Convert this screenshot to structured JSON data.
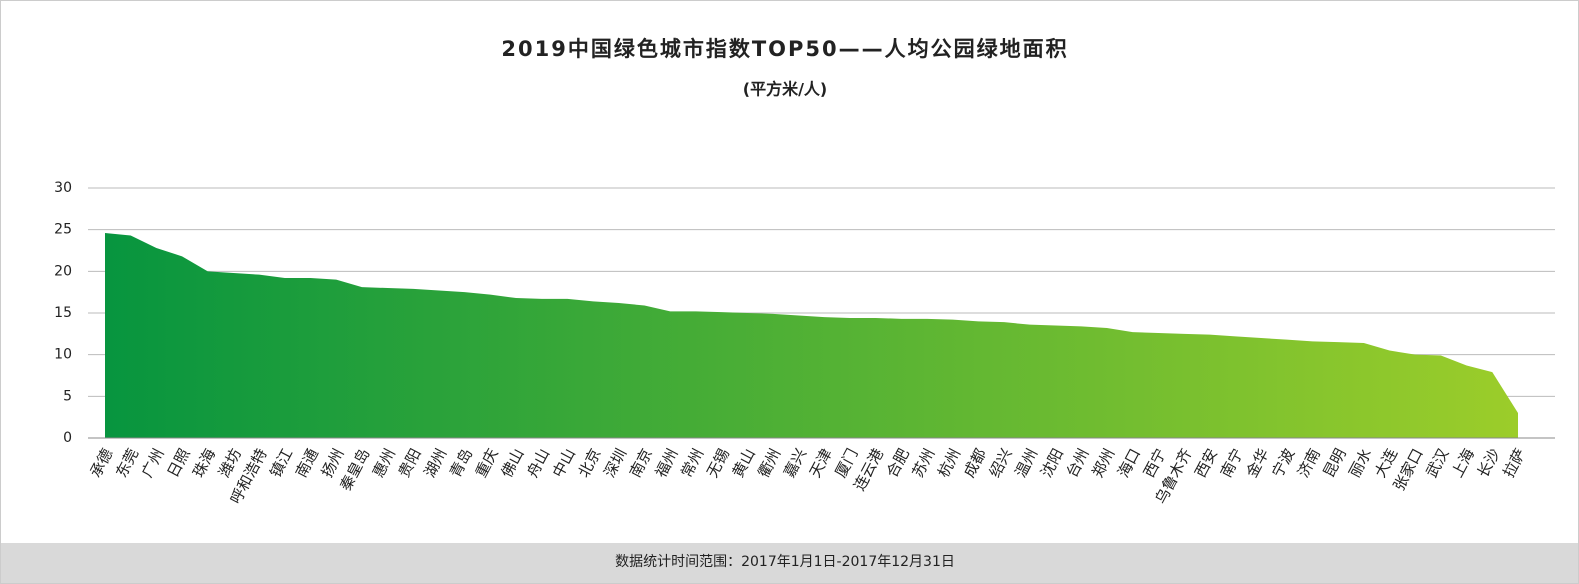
{
  "chart_data": {
    "type": "area",
    "title": "2019中国绿色城市指数TOP50——人均公园绿地面积",
    "subtitle": "(平方米/人)",
    "footer": "数据统计时间范围：2017年1月1日-2017年12月31日",
    "categories": [
      "承德",
      "东莞",
      "广州",
      "日照",
      "珠海",
      "潍坊",
      "呼和浩特",
      "镇江",
      "南通",
      "扬州",
      "秦皇岛",
      "惠州",
      "贵阳",
      "湖州",
      "青岛",
      "重庆",
      "佛山",
      "舟山",
      "中山",
      "北京",
      "深圳",
      "南京",
      "福州",
      "常州",
      "无锡",
      "黄山",
      "衢州",
      "嘉兴",
      "天津",
      "厦门",
      "连云港",
      "合肥",
      "苏州",
      "杭州",
      "成都",
      "绍兴",
      "温州",
      "沈阳",
      "台州",
      "郑州",
      "海口",
      "西宁",
      "乌鲁木齐",
      "西安",
      "南宁",
      "金华",
      "宁波",
      "济南",
      "昆明",
      "丽水",
      "大连",
      "张家口",
      "武汉",
      "上海",
      "长沙",
      "拉萨"
    ],
    "values": [
      24.6,
      24.3,
      22.8,
      21.8,
      20.0,
      19.8,
      19.6,
      19.2,
      19.2,
      19.0,
      18.1,
      18.0,
      17.9,
      17.7,
      17.5,
      17.2,
      16.8,
      16.7,
      16.7,
      16.4,
      16.2,
      15.9,
      15.2,
      15.2,
      15.1,
      15.0,
      14.9,
      14.7,
      14.5,
      14.4,
      14.4,
      14.3,
      14.3,
      14.2,
      14.0,
      13.9,
      13.6,
      13.5,
      13.4,
      13.2,
      12.7,
      12.6,
      12.5,
      12.4,
      12.2,
      12.0,
      11.8,
      11.6,
      11.5,
      11.4,
      10.5,
      10.0,
      9.9,
      8.7,
      7.9,
      3.0
    ],
    "colors": [
      "#07953f",
      "#9ccd2a"
    ],
    "ylim": [
      0,
      30
    ],
    "yticks": [
      0,
      5,
      10,
      15,
      20,
      25,
      30
    ],
    "grid": true
  }
}
